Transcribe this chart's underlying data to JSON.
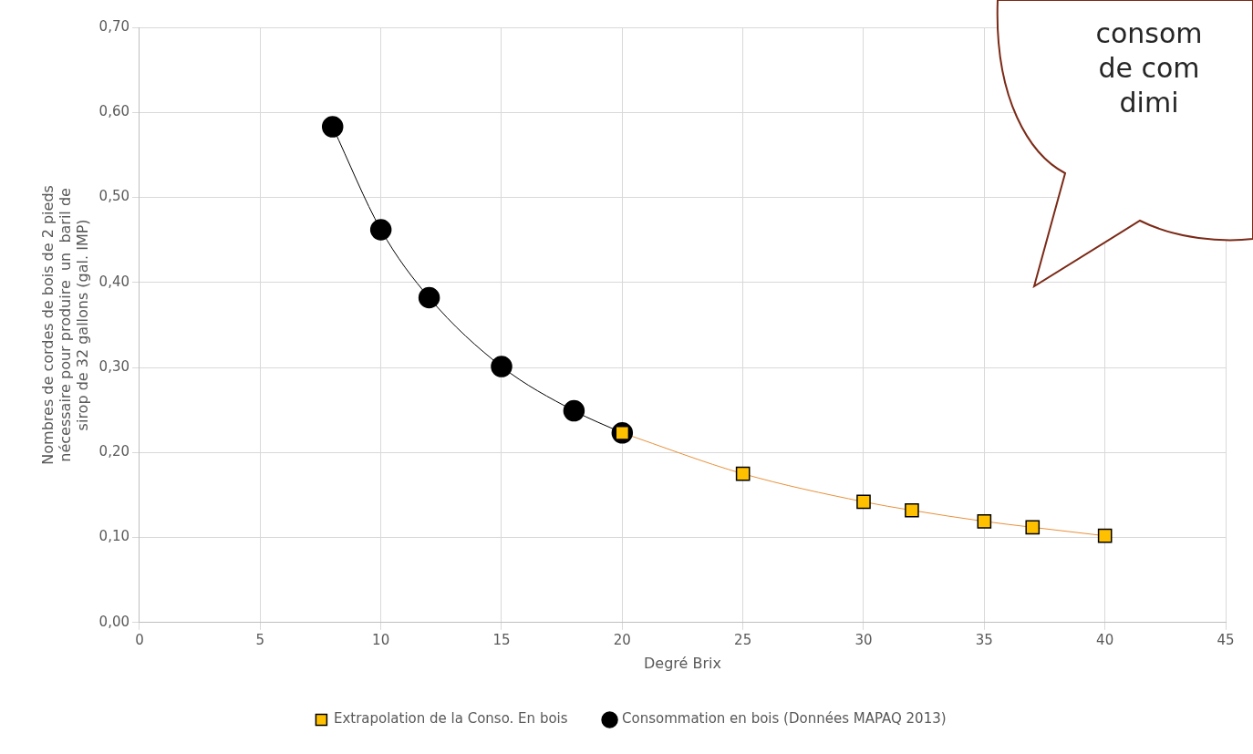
{
  "chart_data": {
    "type": "scatter",
    "xlabel": "Degré Brix",
    "ylabel": "Nombres de cordes de bois de 2 pieds nécessaire pour produire  un  baril de sirop de 32 gallons (gal. IMP)",
    "xlim": [
      0,
      45
    ],
    "xticks": [
      0,
      5,
      10,
      15,
      20,
      25,
      30,
      35,
      40,
      45
    ],
    "ylim": [
      0,
      0.7
    ],
    "yticks": [
      {
        "value": 0,
        "label": "0,00"
      },
      {
        "value": 0.1,
        "label": "0,10"
      },
      {
        "value": 0.2,
        "label": "0,20"
      },
      {
        "value": 0.3,
        "label": "0,30"
      },
      {
        "value": 0.4,
        "label": "0,40"
      },
      {
        "value": 0.5,
        "label": "0,50"
      },
      {
        "value": 0.6,
        "label": "0,60"
      },
      {
        "value": 0.7,
        "label": "0,70"
      }
    ],
    "grid": true,
    "legend": "bottom",
    "annotations": [
      "consom\nde com\ndimi"
    ],
    "series": [
      {
        "type": "line",
        "color": "#000000",
        "marker": "none",
        "x": [
          8,
          10,
          12,
          15,
          18,
          20
        ],
        "values": [
          0.583,
          0.462,
          0.382,
          0.301,
          0.249,
          0.223
        ]
      },
      {
        "type": "line",
        "color": "#e8903a",
        "marker": "none",
        "x": [
          20,
          25,
          30,
          32,
          35,
          37,
          40
        ],
        "values": [
          0.223,
          0.175,
          0.142,
          0.132,
          0.119,
          0.112,
          0.102
        ]
      },
      {
        "name": "Extrapolation de la Conso. En bois",
        "color": "#ffc000",
        "marker": "square",
        "x": [
          20,
          25,
          30,
          32,
          35,
          37,
          40
        ],
        "values": [
          0.223,
          0.175,
          0.142,
          0.132,
          0.119,
          0.112,
          0.102
        ]
      },
      {
        "name": "Consommation en bois (Données MAPAQ 2013)",
        "color": "#000000",
        "marker": "circle",
        "x": [
          8,
          10,
          12,
          15,
          18,
          20
        ],
        "values": [
          0.583,
          0.462,
          0.382,
          0.301,
          0.249,
          0.223
        ]
      }
    ]
  }
}
